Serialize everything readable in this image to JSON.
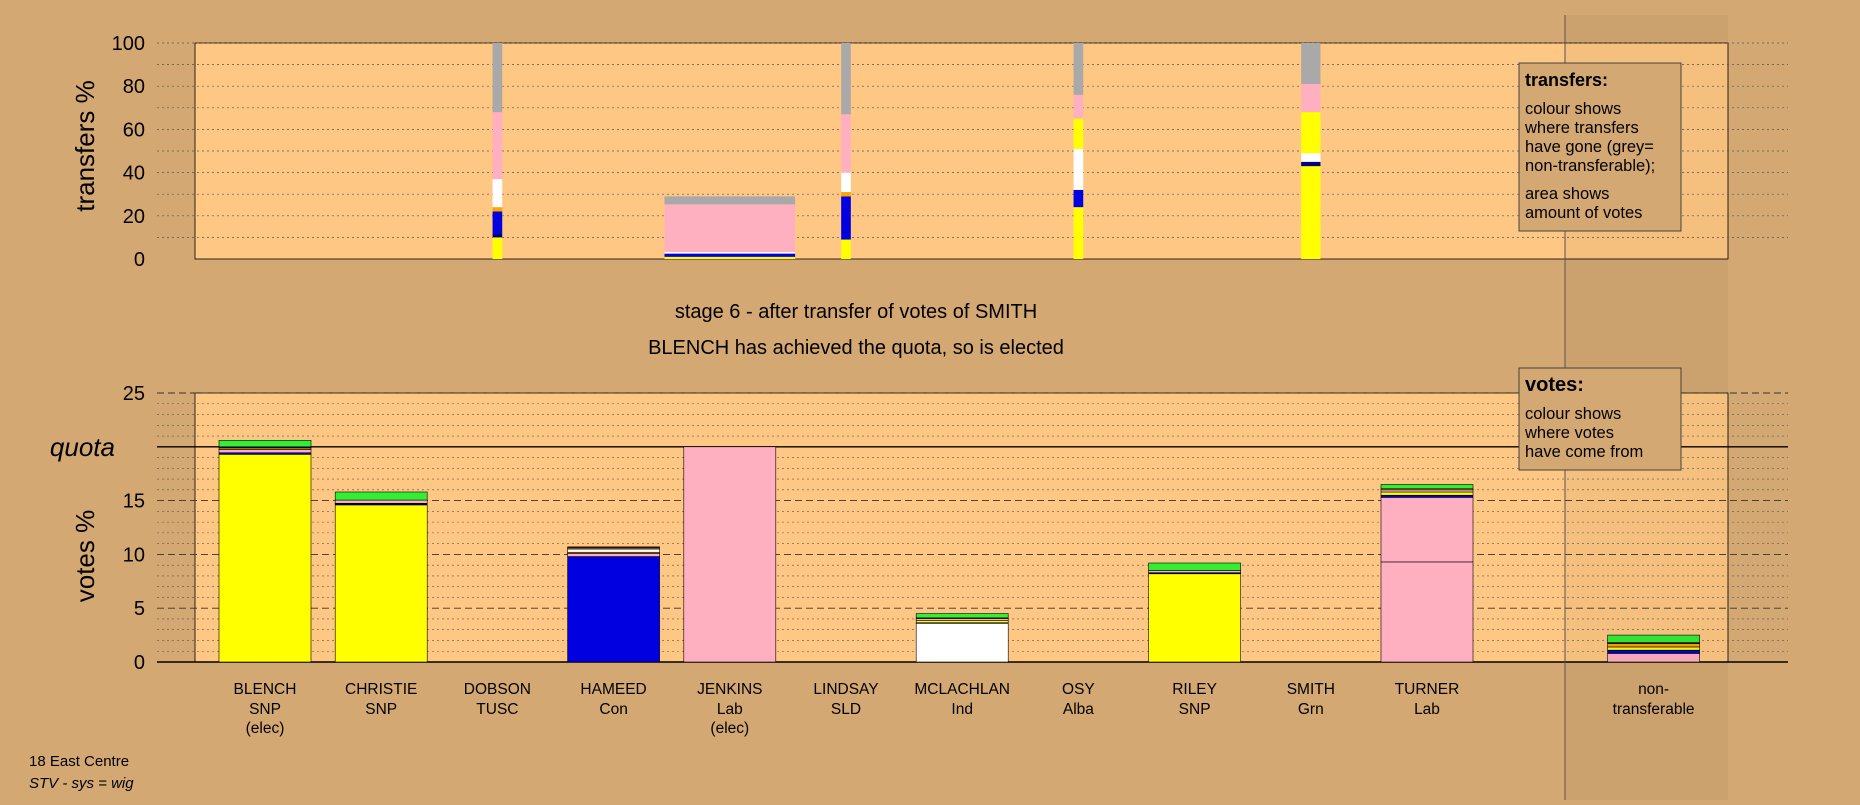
{
  "stage_title": "stage 6 - after transfer of votes of SMITH",
  "stage_subtitle": "BLENCH has achieved the quota, so is elected",
  "legend_transfers": {
    "title": "transfers:",
    "lines": [
      "colour shows",
      "where transfers",
      "have gone (grey=",
      "non-transferable);",
      "area shows",
      "amount of votes"
    ]
  },
  "legend_votes": {
    "title": "votes:",
    "lines": [
      "colour shows",
      "where votes",
      "have come from"
    ]
  },
  "footer": {
    "line1": "18 East Centre",
    "line2": "STV - sys = wig"
  },
  "colors": {
    "background": "#d4a872",
    "plot_bg": "#ffc784",
    "SNP": "#ffff00",
    "TUSC": "#8b0000",
    "Con": "#0000e0",
    "Lab": "#ffb0c0",
    "SLD": "#ffa500",
    "Ind": "#ffffff",
    "Alba": "#000080",
    "Grn": "#33ee33",
    "nontransferable": "#a9a9a9"
  },
  "chart_data": [
    {
      "type": "bar",
      "stacked": true,
      "ylabel": "transfers %",
      "ylim": [
        0,
        100
      ],
      "yticks": [
        0,
        20,
        40,
        60,
        80,
        100
      ],
      "grid": true,
      "columns": [
        {
          "candidate": "DOBSON",
          "width": 0.15,
          "segments": [
            {
              "party": "SNP",
              "value": 10
            },
            {
              "party": "Alba",
              "value": 2
            },
            {
              "party": "Con",
              "value": 10
            },
            {
              "party": "SLD",
              "value": 2
            },
            {
              "party": "Ind",
              "value": 13
            },
            {
              "party": "Lab",
              "value": 31
            },
            {
              "party": "nontransferable",
              "value": 32
            }
          ]
        },
        {
          "candidate": "JENKINS",
          "width": 1,
          "segments": [
            {
              "party": "SNP",
              "value": 1
            },
            {
              "party": "Con",
              "value": 1.5
            },
            {
              "party": "Ind",
              "value": 0.8
            },
            {
              "party": "Lab",
              "value": 22
            },
            {
              "party": "nontransferable",
              "value": 3.7
            }
          ]
        },
        {
          "candidate": "LINDSAY",
          "width": 0.15,
          "segments": [
            {
              "party": "SNP",
              "value": 9
            },
            {
              "party": "Con",
              "value": 20
            },
            {
              "party": "SLD",
              "value": 2
            },
            {
              "party": "Ind",
              "value": 9
            },
            {
              "party": "Lab",
              "value": 27
            },
            {
              "party": "nontransferable",
              "value": 33
            }
          ]
        },
        {
          "candidate": "OSY",
          "width": 0.15,
          "segments": [
            {
              "party": "SNP",
              "value": 24
            },
            {
              "party": "Con",
              "value": 8
            },
            {
              "party": "Ind",
              "value": 19
            },
            {
              "party": "SNP",
              "value": 14
            },
            {
              "party": "Lab",
              "value": 11
            },
            {
              "party": "nontransferable",
              "value": 24
            }
          ]
        },
        {
          "candidate": "SMITH",
          "width": 0.3,
          "segments": [
            {
              "party": "SNP",
              "value": 43
            },
            {
              "party": "Alba",
              "value": 2
            },
            {
              "party": "Ind",
              "value": 4
            },
            {
              "party": "SNP",
              "value": 19
            },
            {
              "party": "Lab",
              "value": 13
            },
            {
              "party": "nontransferable",
              "value": 19
            }
          ]
        }
      ]
    },
    {
      "type": "bar",
      "stacked": true,
      "ylabel": "votes %",
      "ylim": [
        0,
        25
      ],
      "yticks": [
        0,
        5,
        10,
        15,
        20,
        25
      ],
      "quota": 20,
      "quota_label": "quota",
      "categories": [
        {
          "name": "BLENCH",
          "party": "SNP",
          "status": "(elec)"
        },
        {
          "name": "CHRISTIE",
          "party": "SNP",
          "status": ""
        },
        {
          "name": "DOBSON",
          "party": "TUSC",
          "status": ""
        },
        {
          "name": "HAMEED",
          "party": "Con",
          "status": ""
        },
        {
          "name": "JENKINS",
          "party": "Lab",
          "status": "(elec)"
        },
        {
          "name": "LINDSAY",
          "party": "SLD",
          "status": ""
        },
        {
          "name": "MCLACHLAN",
          "party": "Ind",
          "status": ""
        },
        {
          "name": "OSY",
          "party": "Alba",
          "status": ""
        },
        {
          "name": "RILEY",
          "party": "SNP",
          "status": ""
        },
        {
          "name": "SMITH",
          "party": "Grn",
          "status": ""
        },
        {
          "name": "TURNER",
          "party": "Lab",
          "status": ""
        },
        {
          "name": "non-",
          "party": "transferable",
          "status": ""
        }
      ],
      "stacks": [
        [
          {
            "party": "SNP",
            "value": 19.3
          },
          {
            "party": "Con",
            "value": 0.15
          },
          {
            "party": "Lab",
            "value": 0.3
          },
          {
            "party": "SLD",
            "value": 0.15
          },
          {
            "party": "Ind",
            "value": 0.05
          },
          {
            "party": "Alba",
            "value": 0.05
          },
          {
            "party": "Grn",
            "value": 0.6
          }
        ],
        [
          {
            "party": "SNP",
            "value": 14.6
          },
          {
            "party": "Alba",
            "value": 0.1
          },
          {
            "party": "Ind",
            "value": 0.05
          },
          {
            "party": "Lab",
            "value": 0.3
          },
          {
            "party": "Grn",
            "value": 0.75
          }
        ],
        [],
        [
          {
            "party": "Con",
            "value": 9.8
          },
          {
            "party": "Lab",
            "value": 0.3
          },
          {
            "party": "SLD",
            "value": 0.1
          },
          {
            "party": "Ind",
            "value": 0.3
          },
          {
            "party": "SNP",
            "value": 0.1
          },
          {
            "party": "TUSC",
            "value": 0.1
          }
        ],
        [
          {
            "party": "Lab",
            "value": 20
          }
        ],
        [],
        [
          {
            "party": "Ind",
            "value": 3.6
          },
          {
            "party": "Con",
            "value": 0.05
          },
          {
            "party": "SNP",
            "value": 0.2
          },
          {
            "party": "Lab",
            "value": 0.2
          },
          {
            "party": "SLD",
            "value": 0.05
          },
          {
            "party": "Grn",
            "value": 0.4
          }
        ],
        [],
        [
          {
            "party": "SNP",
            "value": 8.2
          },
          {
            "party": "Alba",
            "value": 0.1
          },
          {
            "party": "Lab",
            "value": 0.2
          },
          {
            "party": "Grn",
            "value": 0.7
          }
        ],
        [],
        [
          {
            "party": "Lab",
            "value": 9.3
          },
          {
            "party": "Lab",
            "value": 6.0
          },
          {
            "party": "Con",
            "value": 0.2
          },
          {
            "party": "SNP",
            "value": 0.3
          },
          {
            "party": "Lab",
            "value": 0.2
          },
          {
            "party": "SLD",
            "value": 0.1
          },
          {
            "party": "Grn",
            "value": 0.4
          }
        ],
        [
          {
            "party": "Lab",
            "value": 0.8
          },
          {
            "party": "Con",
            "value": 0.3
          },
          {
            "party": "SNP",
            "value": 0.3
          },
          {
            "party": "SLD",
            "value": 0.3
          },
          {
            "party": "TUSC",
            "value": 0.1
          },
          {
            "party": "Grn",
            "value": 0.7
          }
        ]
      ]
    }
  ]
}
